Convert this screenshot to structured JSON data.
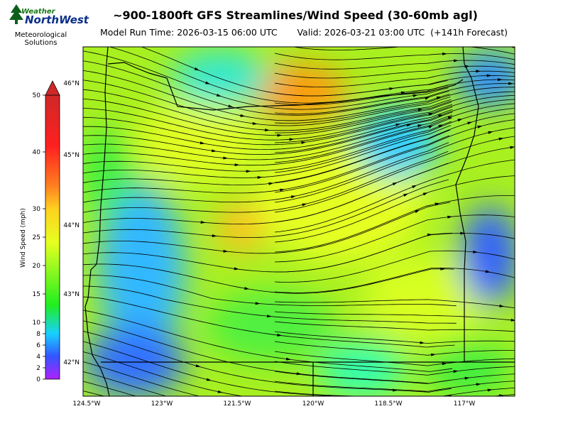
{
  "header": {
    "title": "~900-1800ft GFS Streamlines/Wind Speed (30-60mb agl)",
    "model_run": "Model Run Time: 2026-03-15 06:00 UTC",
    "valid": "Valid: 2026-03-21 03:00 UTC  (+141h Forecast)"
  },
  "logo": {
    "line1": "Weather",
    "line2": "NorthWest",
    "line3": "Meteorological",
    "line4": "Solutions",
    "icon": "pine-tree-icon"
  },
  "colorbar": {
    "label": "Wind Speed (mph)",
    "ticks": [
      "0",
      "2",
      "4",
      "6",
      "8",
      "10",
      "15",
      "20",
      "25",
      "30",
      "40",
      "50"
    ],
    "colors": [
      "#b020ff",
      "#3355ff",
      "#18d0ff",
      "#20ee20",
      "#e6ff20",
      "#ffd020",
      "#ff8020",
      "#ff2020",
      "#d02828"
    ]
  },
  "map": {
    "lat_labels": [
      "46°N",
      "45°N",
      "44°N",
      "43°N",
      "42°N"
    ],
    "lon_labels": [
      "124.5°W",
      "123°W",
      "121.5°W",
      "120°W",
      "118.5°W",
      "117°W"
    ],
    "extent": {
      "lon_min": -124.5,
      "lon_max": -116.2,
      "lat_min": 41.5,
      "lat_max": 46.5
    }
  }
}
